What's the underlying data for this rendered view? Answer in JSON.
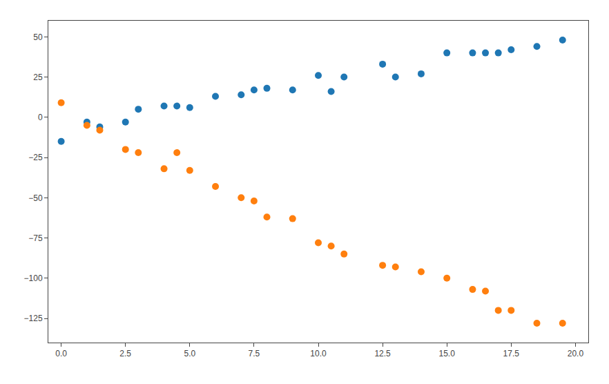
{
  "chart_data": {
    "type": "scatter",
    "x": [
      0.0,
      1.0,
      1.5,
      2.5,
      3.0,
      4.0,
      4.5,
      5.0,
      6.0,
      7.0,
      7.5,
      8.0,
      9.0,
      10.0,
      10.5,
      11.0,
      12.5,
      13.0,
      14.0,
      15.0,
      16.0,
      16.5,
      17.0,
      17.5,
      18.5,
      19.5
    ],
    "series": [
      {
        "color": "#1f77b4",
        "values": [
          -15,
          -3,
          -6,
          -3,
          5,
          7,
          7,
          6,
          13,
          14,
          17,
          18,
          17,
          26,
          16,
          25,
          33,
          25,
          27,
          40,
          40,
          40,
          40,
          42,
          44,
          48
        ]
      },
      {
        "color": "#ff7f0e",
        "values": [
          9,
          -5,
          -8,
          -20,
          -22,
          -32,
          -22,
          -33,
          -43,
          -50,
          -52,
          -62,
          -63,
          -78,
          -80,
          -85,
          -92,
          -93,
          -96,
          -100,
          -107,
          -108,
          -120,
          -120,
          -128,
          -128
        ]
      }
    ],
    "xlim": [
      -0.5,
      20.5
    ],
    "ylim": [
      -140,
      60
    ],
    "xticks": [
      {
        "value": 0.0,
        "label": "0.0"
      },
      {
        "value": 2.5,
        "label": "2.5"
      },
      {
        "value": 5.0,
        "label": "5.0"
      },
      {
        "value": 7.5,
        "label": "7.5"
      },
      {
        "value": 10.0,
        "label": "10.0"
      },
      {
        "value": 12.5,
        "label": "12.5"
      },
      {
        "value": 15.0,
        "label": "15.0"
      },
      {
        "value": 17.5,
        "label": "17.5"
      },
      {
        "value": 20.0,
        "label": "20.0"
      }
    ],
    "yticks": [
      -125,
      -100,
      -75,
      -50,
      -25,
      0,
      25,
      50
    ],
    "grid": false
  }
}
